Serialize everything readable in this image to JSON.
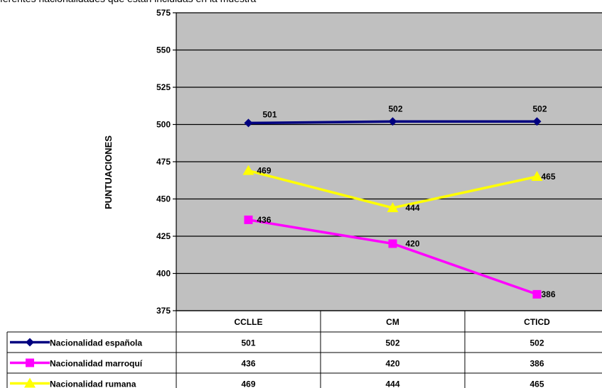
{
  "caption": "ferentes nacionalidades que están incluidas en la muestra",
  "chart_data": {
    "type": "line",
    "title": "",
    "ylabel": "PUNTUACIONES",
    "xlabel": "",
    "ylim": [
      375,
      575
    ],
    "yticks": [
      375,
      400,
      425,
      450,
      475,
      500,
      525,
      550,
      575
    ],
    "grid": true,
    "plot_background": "#c0c0c0",
    "categories": [
      "CCLLE",
      "CM",
      "CTICD"
    ],
    "series": [
      {
        "name": "Nacionalidad española",
        "values": [
          501,
          502,
          502
        ],
        "color": "#000080",
        "marker": "diamond"
      },
      {
        "name": "Nacionalidad marroquí",
        "values": [
          436,
          420,
          386
        ],
        "color": "#ff00ff",
        "marker": "square"
      },
      {
        "name": "Nacionalidad rumana",
        "values": [
          469,
          444,
          465
        ],
        "color": "#ffff00",
        "marker": "triangle"
      }
    ],
    "data_table": true
  }
}
